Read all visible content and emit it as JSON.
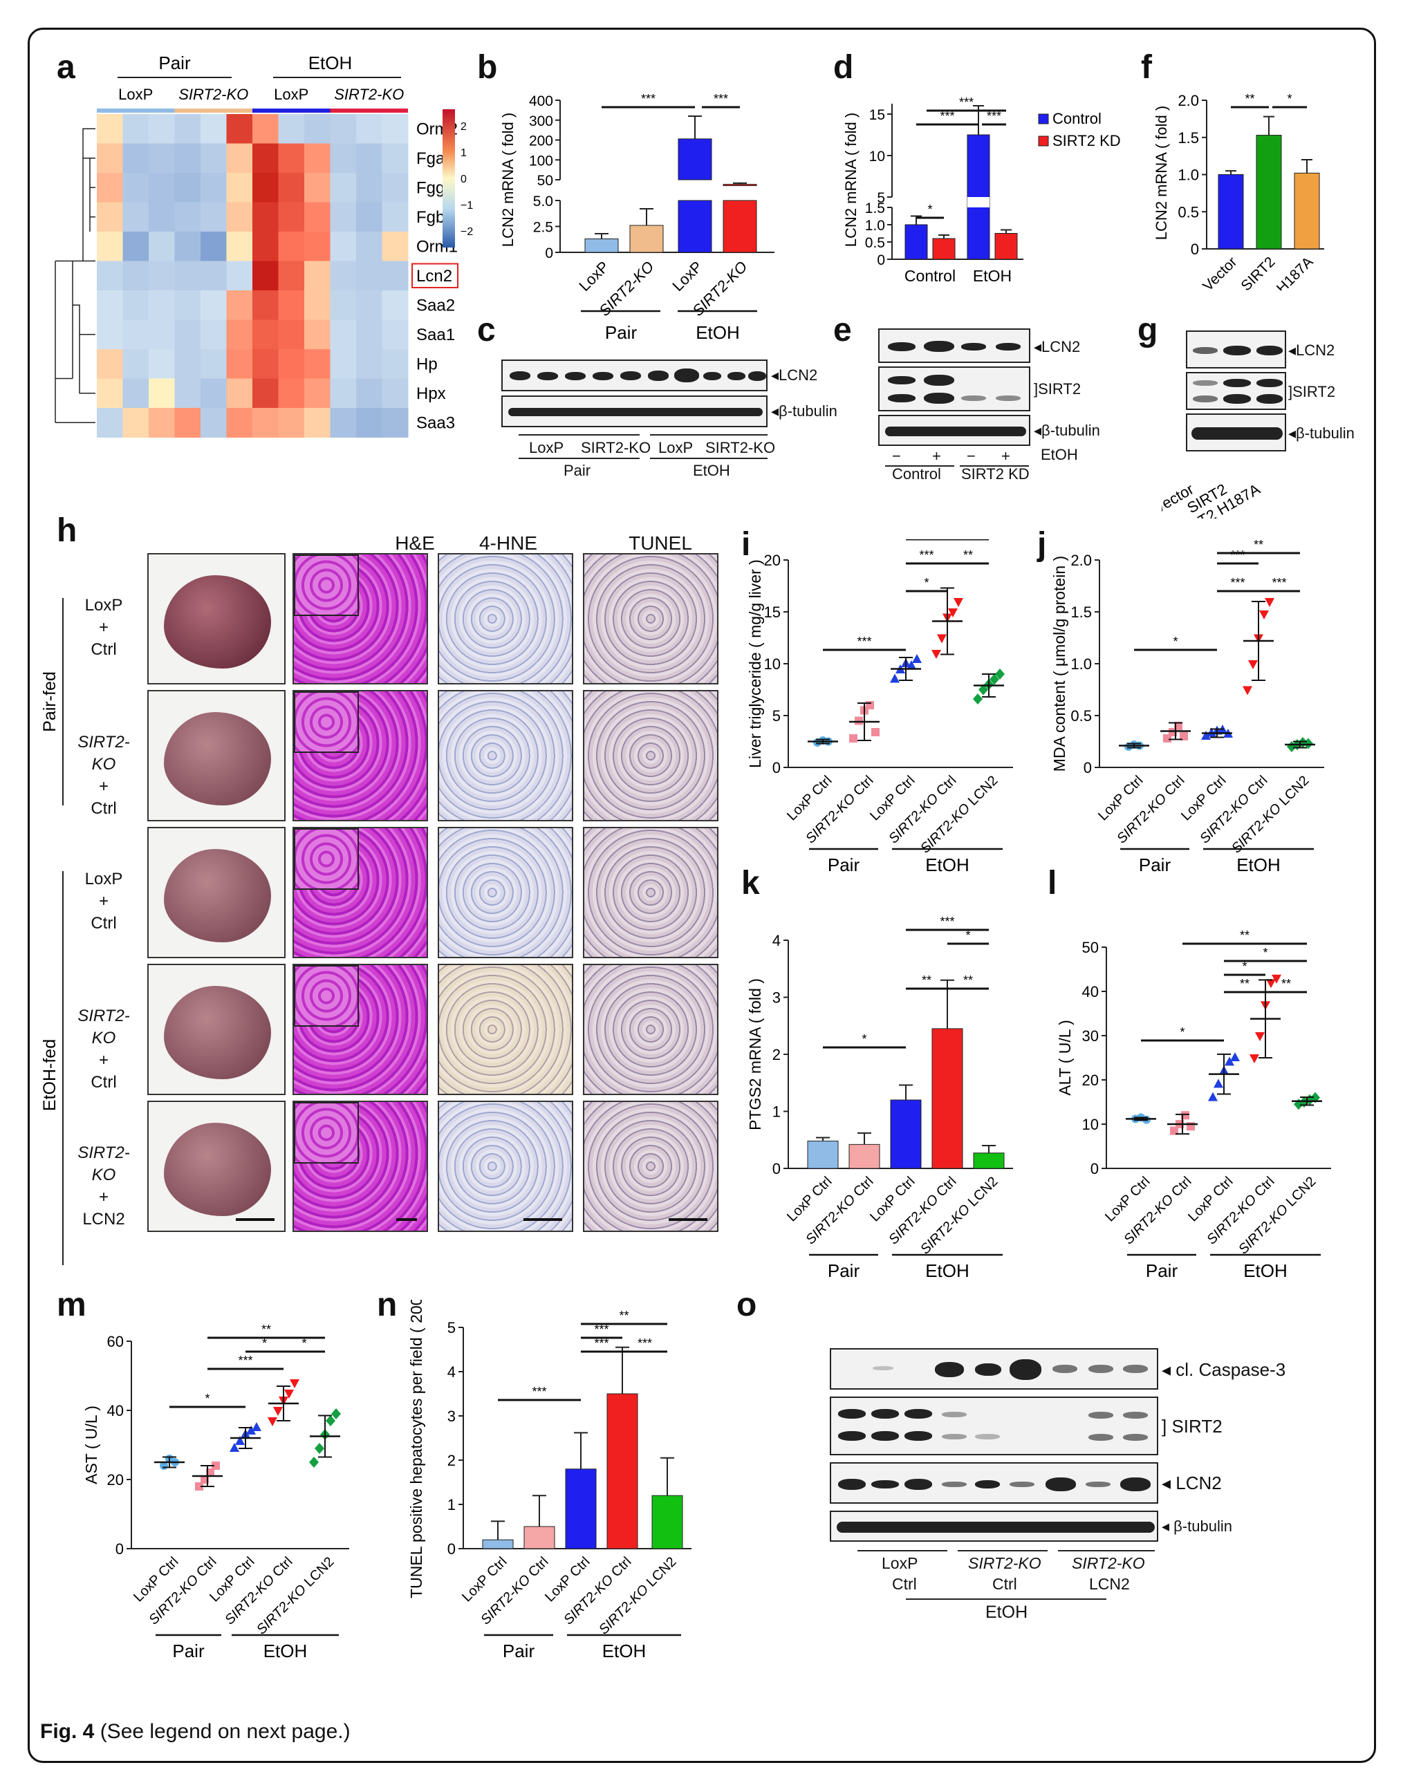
{
  "panel_letters": [
    "a",
    "b",
    "c",
    "d",
    "e",
    "f",
    "g",
    "h",
    "i",
    "j",
    "k",
    "l",
    "m",
    "n",
    "o"
  ],
  "heatmap": {
    "group_top": [
      "Pair",
      "EtOH"
    ],
    "group_sub": [
      "LoxP",
      "SIRT2-KO",
      "LoxP",
      "SIRT2-KO"
    ],
    "genes": [
      "Orm2",
      "Fga",
      "Fgg",
      "Fgb",
      "Orm1",
      "Lcn2",
      "Saa2",
      "Saa1",
      "Hp",
      "Hpx",
      "Saa3"
    ],
    "highlight_gene": "Lcn2",
    "scale_ticks": [
      "2",
      "1",
      "0",
      "−1",
      "−2"
    ],
    "matrix": [
      [
        0.3,
        -0.4,
        -0.3,
        -0.5,
        -0.2,
        2.2,
        1.2,
        -0.4,
        -0.6,
        -0.5,
        -0.3,
        -0.2
      ],
      [
        0.6,
        -0.8,
        -0.7,
        -0.8,
        -0.6,
        0.6,
        2.4,
        1.8,
        1.2,
        -0.6,
        -0.7,
        -0.4
      ],
      [
        0.8,
        -0.7,
        -0.8,
        -0.9,
        -0.7,
        0.4,
        2.5,
        2.0,
        1.0,
        -0.4,
        -0.7,
        -0.5
      ],
      [
        0.5,
        -0.6,
        -0.8,
        -0.7,
        -0.6,
        0.6,
        2.3,
        1.9,
        1.4,
        -0.5,
        -0.8,
        -0.4
      ],
      [
        0.2,
        -1.2,
        -0.4,
        -0.9,
        -1.4,
        0.2,
        2.3,
        1.6,
        1.5,
        -0.3,
        -0.6,
        0.4
      ],
      [
        -0.4,
        -0.6,
        -0.5,
        -0.6,
        -0.6,
        -0.3,
        3.0,
        1.8,
        0.6,
        -0.5,
        -0.6,
        -0.6
      ],
      [
        -0.2,
        -0.4,
        -0.3,
        -0.4,
        -0.2,
        1.0,
        2.0,
        1.6,
        0.6,
        -0.4,
        -0.5,
        -0.2
      ],
      [
        -0.2,
        -0.3,
        -0.3,
        -0.5,
        -0.3,
        1.2,
        1.8,
        1.7,
        0.8,
        -0.3,
        -0.5,
        -0.3
      ],
      [
        0.5,
        -0.4,
        -0.2,
        -0.5,
        -0.4,
        1.3,
        1.9,
        1.6,
        1.4,
        -0.3,
        -0.5,
        -0.4
      ],
      [
        0.3,
        -0.6,
        0.1,
        -0.5,
        -0.7,
        0.7,
        2.1,
        1.5,
        1.1,
        -0.4,
        -0.7,
        -0.5
      ],
      [
        -0.4,
        0.4,
        0.8,
        1.2,
        -0.6,
        1.2,
        1.0,
        0.9,
        0.5,
        -0.8,
        -1.0,
        -0.9
      ]
    ]
  },
  "panel_b": {
    "ylabel": "LCN2 mRNA ( fold )",
    "upper_ticks": [
      "400",
      "300",
      "200",
      "100",
      "50"
    ],
    "lower_ticks": [
      "5.0",
      "2.5",
      "0"
    ],
    "categories": [
      "LoxP",
      "SIRT2-KO",
      "LoxP",
      "SIRT2-KO"
    ],
    "values": [
      1.3,
      2.6,
      230,
      30
    ],
    "errors": [
      0.5,
      1.6,
      100,
      5
    ],
    "colors": [
      "#8fbbe6",
      "#f0bc8c",
      "#1f1ff0",
      "#f02020"
    ],
    "groups": [
      "Pair",
      "EtOH"
    ],
    "sig": [
      "***",
      "***"
    ]
  },
  "panel_c": {
    "labels": [
      "LCN2",
      "β-tubulin"
    ],
    "lanes": [
      "LoxP",
      "SIRT2-KO",
      "LoxP",
      "SIRT2-KO"
    ],
    "groups": [
      "Pair",
      "EtOH"
    ]
  },
  "panel_d": {
    "ylabel": "LCN2 mRNA ( fold )",
    "upper_ticks": [
      "15",
      "10",
      "5"
    ],
    "lower_ticks": [
      "1.5",
      "1.0",
      "0.5",
      "0"
    ],
    "categories": [
      "Control",
      "EtOH"
    ],
    "legend": [
      "Control",
      "SIRT2 KD"
    ],
    "values": [
      [
        1.0,
        0.6
      ],
      [
        12.5,
        0.75
      ]
    ],
    "errors": [
      [
        0.25,
        0.1
      ],
      [
        3.5,
        0.1
      ]
    ],
    "colors": [
      "#1f1ff0",
      "#f02020"
    ],
    "sig": [
      "*",
      "***",
      "***",
      "***"
    ]
  },
  "panel_e": {
    "labels": [
      "LCN2",
      "SIRT2",
      "β-tubulin",
      "EtOH"
    ],
    "signs": [
      "−",
      "+",
      "−",
      "+"
    ],
    "groups": [
      "Control",
      "SIRT2 KD"
    ]
  },
  "panel_f": {
    "ylabel": "LCN2 mRNA ( fold )",
    "ticks": [
      "2.0",
      "1.5",
      "1.0",
      "0.5",
      "0"
    ],
    "categories": [
      "Vector",
      "SIRT2",
      "SIRT2 H187A"
    ],
    "values": [
      1.0,
      1.53,
      1.02
    ],
    "errors": [
      0.05,
      0.25,
      0.18
    ],
    "colors": [
      "#1f1ff0",
      "#12a012",
      "#f0a040"
    ],
    "sig": [
      "**",
      "*"
    ]
  },
  "panel_g": {
    "labels": [
      "LCN2",
      "SIRT2",
      "β-tubulin"
    ],
    "lanes": [
      "Vector",
      "SIRT2",
      "SIRT2 H187A"
    ]
  },
  "panel_h": {
    "columns": [
      "H&E",
      "4-HNE",
      "TUNEL"
    ],
    "rows": [
      {
        "genotype": "LoxP",
        "plus1": "+",
        "treat": "Ctrl"
      },
      {
        "genotype": "SIRT2-KO",
        "plus1": "+",
        "treat": "Ctrl"
      },
      {
        "genotype": "LoxP",
        "plus1": "+",
        "treat": "Ctrl"
      },
      {
        "genotype": "SIRT2-KO",
        "plus1": "+",
        "treat": "Ctrl"
      },
      {
        "genotype": "SIRT2-KO",
        "plus1": "+",
        "treat": "LCN2"
      }
    ],
    "side_groups": [
      "Pair-fed",
      "EtOH-fed"
    ]
  },
  "scatter_categories": [
    "LoxP Ctrl",
    "SIRT2-KO Ctrl",
    "LoxP Ctrl",
    "SIRT2-KO Ctrl",
    "SIRT2-KO LCN2"
  ],
  "scatter_colors": [
    "#5aaee6",
    "#f08a9a",
    "#1f3fe0",
    "#f01818",
    "#12a040"
  ],
  "bar_colors": [
    "#8fbbe6",
    "#f5a6a6",
    "#1f1ff0",
    "#f02020",
    "#12c012"
  ],
  "groups": [
    "Pair",
    "EtOH"
  ],
  "chart_data": [
    {
      "panel": "i",
      "type": "scatter",
      "ylabel": "Liver triglyceride ( mg/g liver )",
      "ylim": [
        0,
        20
      ],
      "ticks": [
        "20",
        "15",
        "10",
        "5",
        "0"
      ],
      "points": [
        [
          2.4,
          2.6,
          2.5
        ],
        [
          2.8,
          4.5,
          5.5,
          6.0,
          3.4
        ],
        [
          8.5,
          9.4,
          10.0,
          9.8,
          10.4
        ],
        [
          11.0,
          12.5,
          14.5,
          15.0,
          16.0
        ],
        [
          6.6,
          7.5,
          8.0,
          8.5,
          9.0
        ]
      ],
      "means": [
        2.5,
        4.4,
        9.5,
        14.1,
        7.9
      ],
      "sds": [
        0.2,
        1.8,
        1.1,
        3.2,
        1.1
      ],
      "sig": [
        "***",
        "*",
        "***",
        "**",
        "*"
      ]
    },
    {
      "panel": "j",
      "type": "scatter",
      "ylabel": "MDA content ( μmol/g protein )",
      "ylim": [
        0,
        2.0
      ],
      "ticks": [
        "2.0",
        "1.5",
        "1.0",
        "0.5",
        "0"
      ],
      "points": [
        [
          0.2,
          0.22,
          0.21
        ],
        [
          0.28,
          0.34,
          0.4,
          0.3
        ],
        [
          0.3,
          0.33,
          0.35,
          0.36,
          0.32
        ],
        [
          0.75,
          1.0,
          1.25,
          1.48,
          1.6
        ],
        [
          0.2,
          0.22,
          0.24,
          0.23
        ]
      ],
      "means": [
        0.21,
        0.35,
        0.33,
        1.22,
        0.22
      ],
      "sds": [
        0.02,
        0.08,
        0.04,
        0.38,
        0.03
      ],
      "sig": [
        "*",
        "***",
        "***",
        "**",
        "***"
      ]
    },
    {
      "panel": "k",
      "type": "bar",
      "ylabel": "PTGS2 mRNA ( fold )",
      "ylim": [
        0,
        4
      ],
      "ticks": [
        "4",
        "3",
        "2",
        "1",
        "0"
      ],
      "values": [
        0.48,
        0.42,
        1.2,
        2.45,
        0.27
      ],
      "errors": [
        0.06,
        0.2,
        0.26,
        0.85,
        0.13
      ],
      "sig": [
        "*",
        "**",
        "**",
        "*",
        "***"
      ]
    },
    {
      "panel": "l",
      "type": "scatter",
      "ylabel": "ALT ( U/L )",
      "ylim": [
        0,
        50
      ],
      "ticks": [
        "50",
        "40",
        "30",
        "20",
        "10",
        "0"
      ],
      "points": [
        [
          11.2,
          11.5,
          11.0
        ],
        [
          8.5,
          10.0,
          12.0,
          9.5
        ],
        [
          16.0,
          19.0,
          22.0,
          24.0,
          25.0
        ],
        [
          25.0,
          30.0,
          37.0,
          42.0,
          43.0
        ],
        [
          14.5,
          15.0,
          15.5,
          16.0
        ]
      ],
      "means": [
        11.2,
        10.0,
        21.3,
        33.8,
        15.2
      ],
      "sds": [
        0.3,
        2.2,
        4.5,
        8.8,
        0.9
      ],
      "sig": [
        "*",
        "**",
        "*",
        "**",
        "*",
        "**"
      ]
    },
    {
      "panel": "m",
      "type": "scatter",
      "ylabel": "AST ( U/L )",
      "ylim": [
        0,
        60
      ],
      "ticks": [
        "60",
        "40",
        "20",
        "0"
      ],
      "points": [
        [
          24.0,
          26.0,
          25.0
        ],
        [
          18.0,
          20.0,
          22.0,
          24.0
        ],
        [
          29.0,
          31.0,
          33.0,
          34.0,
          35.0
        ],
        [
          37.0,
          40.0,
          43.0,
          45.0,
          48.0
        ],
        [
          25.0,
          29.0,
          33.0,
          37.0,
          39.0
        ]
      ],
      "means": [
        25.0,
        21.0,
        32.0,
        42.0,
        32.5
      ],
      "sds": [
        1.5,
        3.0,
        3.0,
        5.0,
        6.0
      ],
      "sig": [
        "*",
        "***",
        "*",
        "*",
        "**"
      ]
    },
    {
      "panel": "n",
      "type": "bar",
      "ylabel": "TUNEL positive hepatocytes per field ( 200× )",
      "ylim": [
        0,
        5
      ],
      "ticks": [
        "5",
        "4",
        "3",
        "2",
        "1",
        "0"
      ],
      "values": [
        0.2,
        0.5,
        1.8,
        3.5,
        1.2
      ],
      "errors": [
        0.42,
        0.7,
        0.82,
        1.05,
        0.85
      ],
      "sig": [
        "***",
        "***",
        "***",
        "***",
        "**"
      ]
    }
  ],
  "panel_o": {
    "labels": [
      "cl. Caspase-3",
      "SIRT2",
      "LCN2",
      "β-tubulin"
    ],
    "groups": [
      {
        "l1": "LoxP",
        "l2": "Ctrl"
      },
      {
        "l1": "SIRT2-KO",
        "l2": "Ctrl"
      },
      {
        "l1": "SIRT2-KO",
        "l2": "LCN2"
      }
    ],
    "treatment": "EtOH"
  },
  "caption": {
    "fig": "Fig. 4",
    "text": "(See legend on next page.)"
  }
}
